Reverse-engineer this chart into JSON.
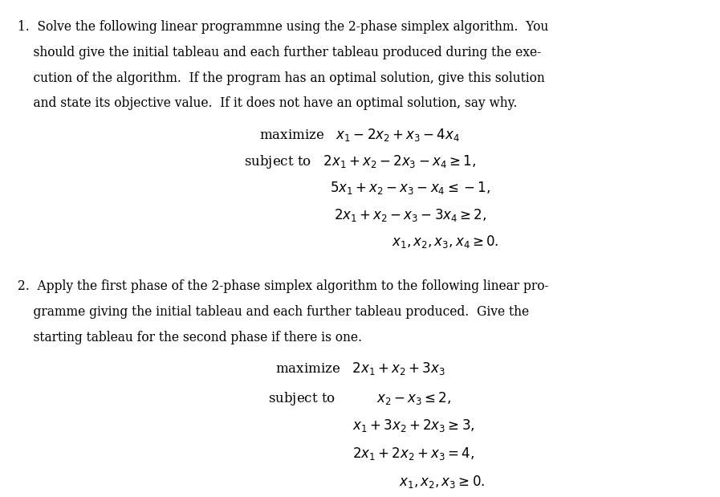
{
  "background_color": "#ffffff",
  "text_color": "#000000",
  "figsize": [
    8.97,
    6.19
  ],
  "dpi": 100,
  "problem1_intro": "1.\\hspace{0.5em} Solve the following linear programmne using the 2-phase simplex algorithm.  You\nshould give the initial tableau and each further tableau produced during the exe-\ncution of the algorithm.  If the program has an optimal solution, give this solution\nand state its objective value.  If it does not have an optimal solution, say why.",
  "problem2_intro": "2.\\hspace{0.5em} Apply the first phase of the 2-phase simplex algorithm to the following linear pro-\ngramme giving the initial tableau and each further tableau produced.  Give the\nstarting tableau for the second phase if there is one."
}
